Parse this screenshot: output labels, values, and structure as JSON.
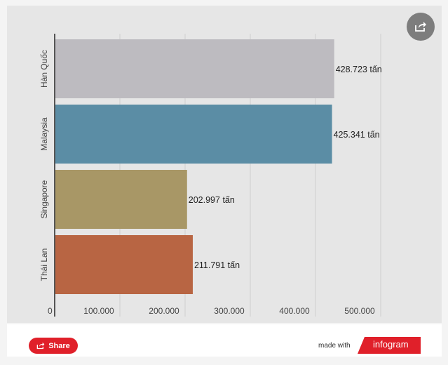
{
  "chart_data": {
    "type": "bar",
    "orientation": "horizontal",
    "categories": [
      "Hàn Quốc",
      "Malaysia",
      "Singapore",
      "Thái Lan"
    ],
    "values": [
      428723,
      425341,
      202997,
      211791
    ],
    "value_labels": [
      "428.723 tấn",
      "425.341 tấn",
      "202.997 tấn",
      "211.791 tấn"
    ],
    "colors": [
      "#bdbbc0",
      "#5b8da5",
      "#a89766",
      "#b86543"
    ],
    "xlim": [
      0,
      500000
    ],
    "x_ticks": [
      {
        "value": 0,
        "label": "0"
      },
      {
        "value": 100000,
        "label": "100.000"
      },
      {
        "value": 200000,
        "label": "200.000"
      },
      {
        "value": 300000,
        "label": "300.000"
      },
      {
        "value": 400000,
        "label": "400.000"
      },
      {
        "value": 500000,
        "label": "500.000"
      }
    ],
    "gridlines": true,
    "title": "",
    "xlabel": "",
    "ylabel": ""
  },
  "footer": {
    "share_label": "Share",
    "made_with": "made with",
    "brand": "infogram"
  },
  "icons": {
    "share_round": "share-icon",
    "share_button": "share-icon"
  }
}
